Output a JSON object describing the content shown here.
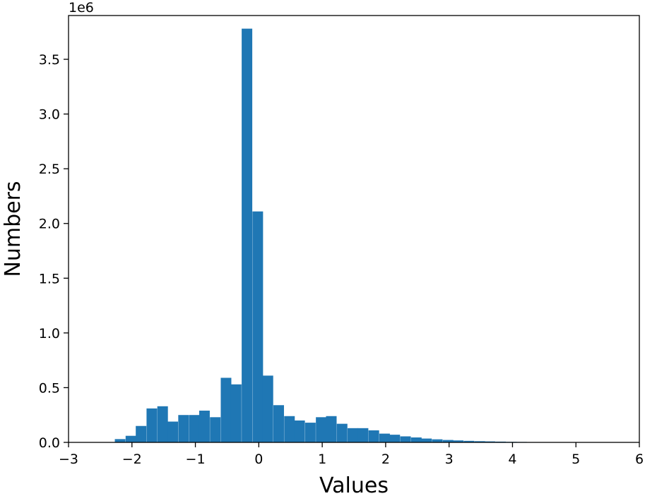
{
  "chart_data": {
    "type": "bar",
    "subtype": "histogram",
    "xlabel": "Values",
    "ylabel": "Numbers",
    "y_offset_label": "1e6",
    "xlim": [
      -3,
      6
    ],
    "ylim": [
      0,
      3.9
    ],
    "x_ticks": [
      -3,
      -2,
      -1,
      0,
      1,
      2,
      3,
      4,
      5,
      6
    ],
    "x_tick_labels": [
      "−3",
      "−2",
      "−1",
      "0",
      "1",
      "2",
      "3",
      "4",
      "5",
      "6"
    ],
    "y_ticks": [
      0,
      0.5,
      1,
      1.5,
      2,
      2.5,
      3,
      3.5
    ],
    "y_tick_labels": [
      "0.0",
      "0.5",
      "1.0",
      "1.5",
      "2.0",
      "2.5",
      "3.0",
      "3.5"
    ],
    "y_unit_multiplier": 1000000,
    "bin_width": 0.167,
    "bins_start": [
      -2.27,
      -2.1,
      -1.94,
      -1.77,
      -1.6,
      -1.44,
      -1.27,
      -1.1,
      -0.94,
      -0.77,
      -0.6,
      -0.44,
      -0.27,
      -0.1,
      0.06,
      0.23,
      0.4,
      0.56,
      0.73,
      0.9,
      1.06,
      1.23,
      1.4,
      1.56,
      1.73,
      1.9,
      2.06,
      2.23,
      2.4,
      2.56,
      2.73,
      2.9,
      3.06,
      3.23,
      3.4,
      3.56,
      3.73,
      3.9,
      4.06,
      4.23,
      4.4,
      4.56,
      4.73,
      4.9,
      5.06,
      5.23,
      5.4
    ],
    "values": [
      0.03,
      0.06,
      0.15,
      0.31,
      0.33,
      0.19,
      0.25,
      0.25,
      0.29,
      0.23,
      0.59,
      0.53,
      3.78,
      2.11,
      0.61,
      0.34,
      0.24,
      0.2,
      0.18,
      0.23,
      0.24,
      0.17,
      0.13,
      0.13,
      0.11,
      0.08,
      0.07,
      0.055,
      0.045,
      0.035,
      0.028,
      0.022,
      0.018,
      0.014,
      0.011,
      0.009,
      0.007,
      0.005,
      0.004,
      0.003,
      0.003,
      0.002,
      0.002,
      0.001,
      0.001,
      0.001,
      0.001
    ],
    "color": "#1f77b4",
    "grid": false
  }
}
